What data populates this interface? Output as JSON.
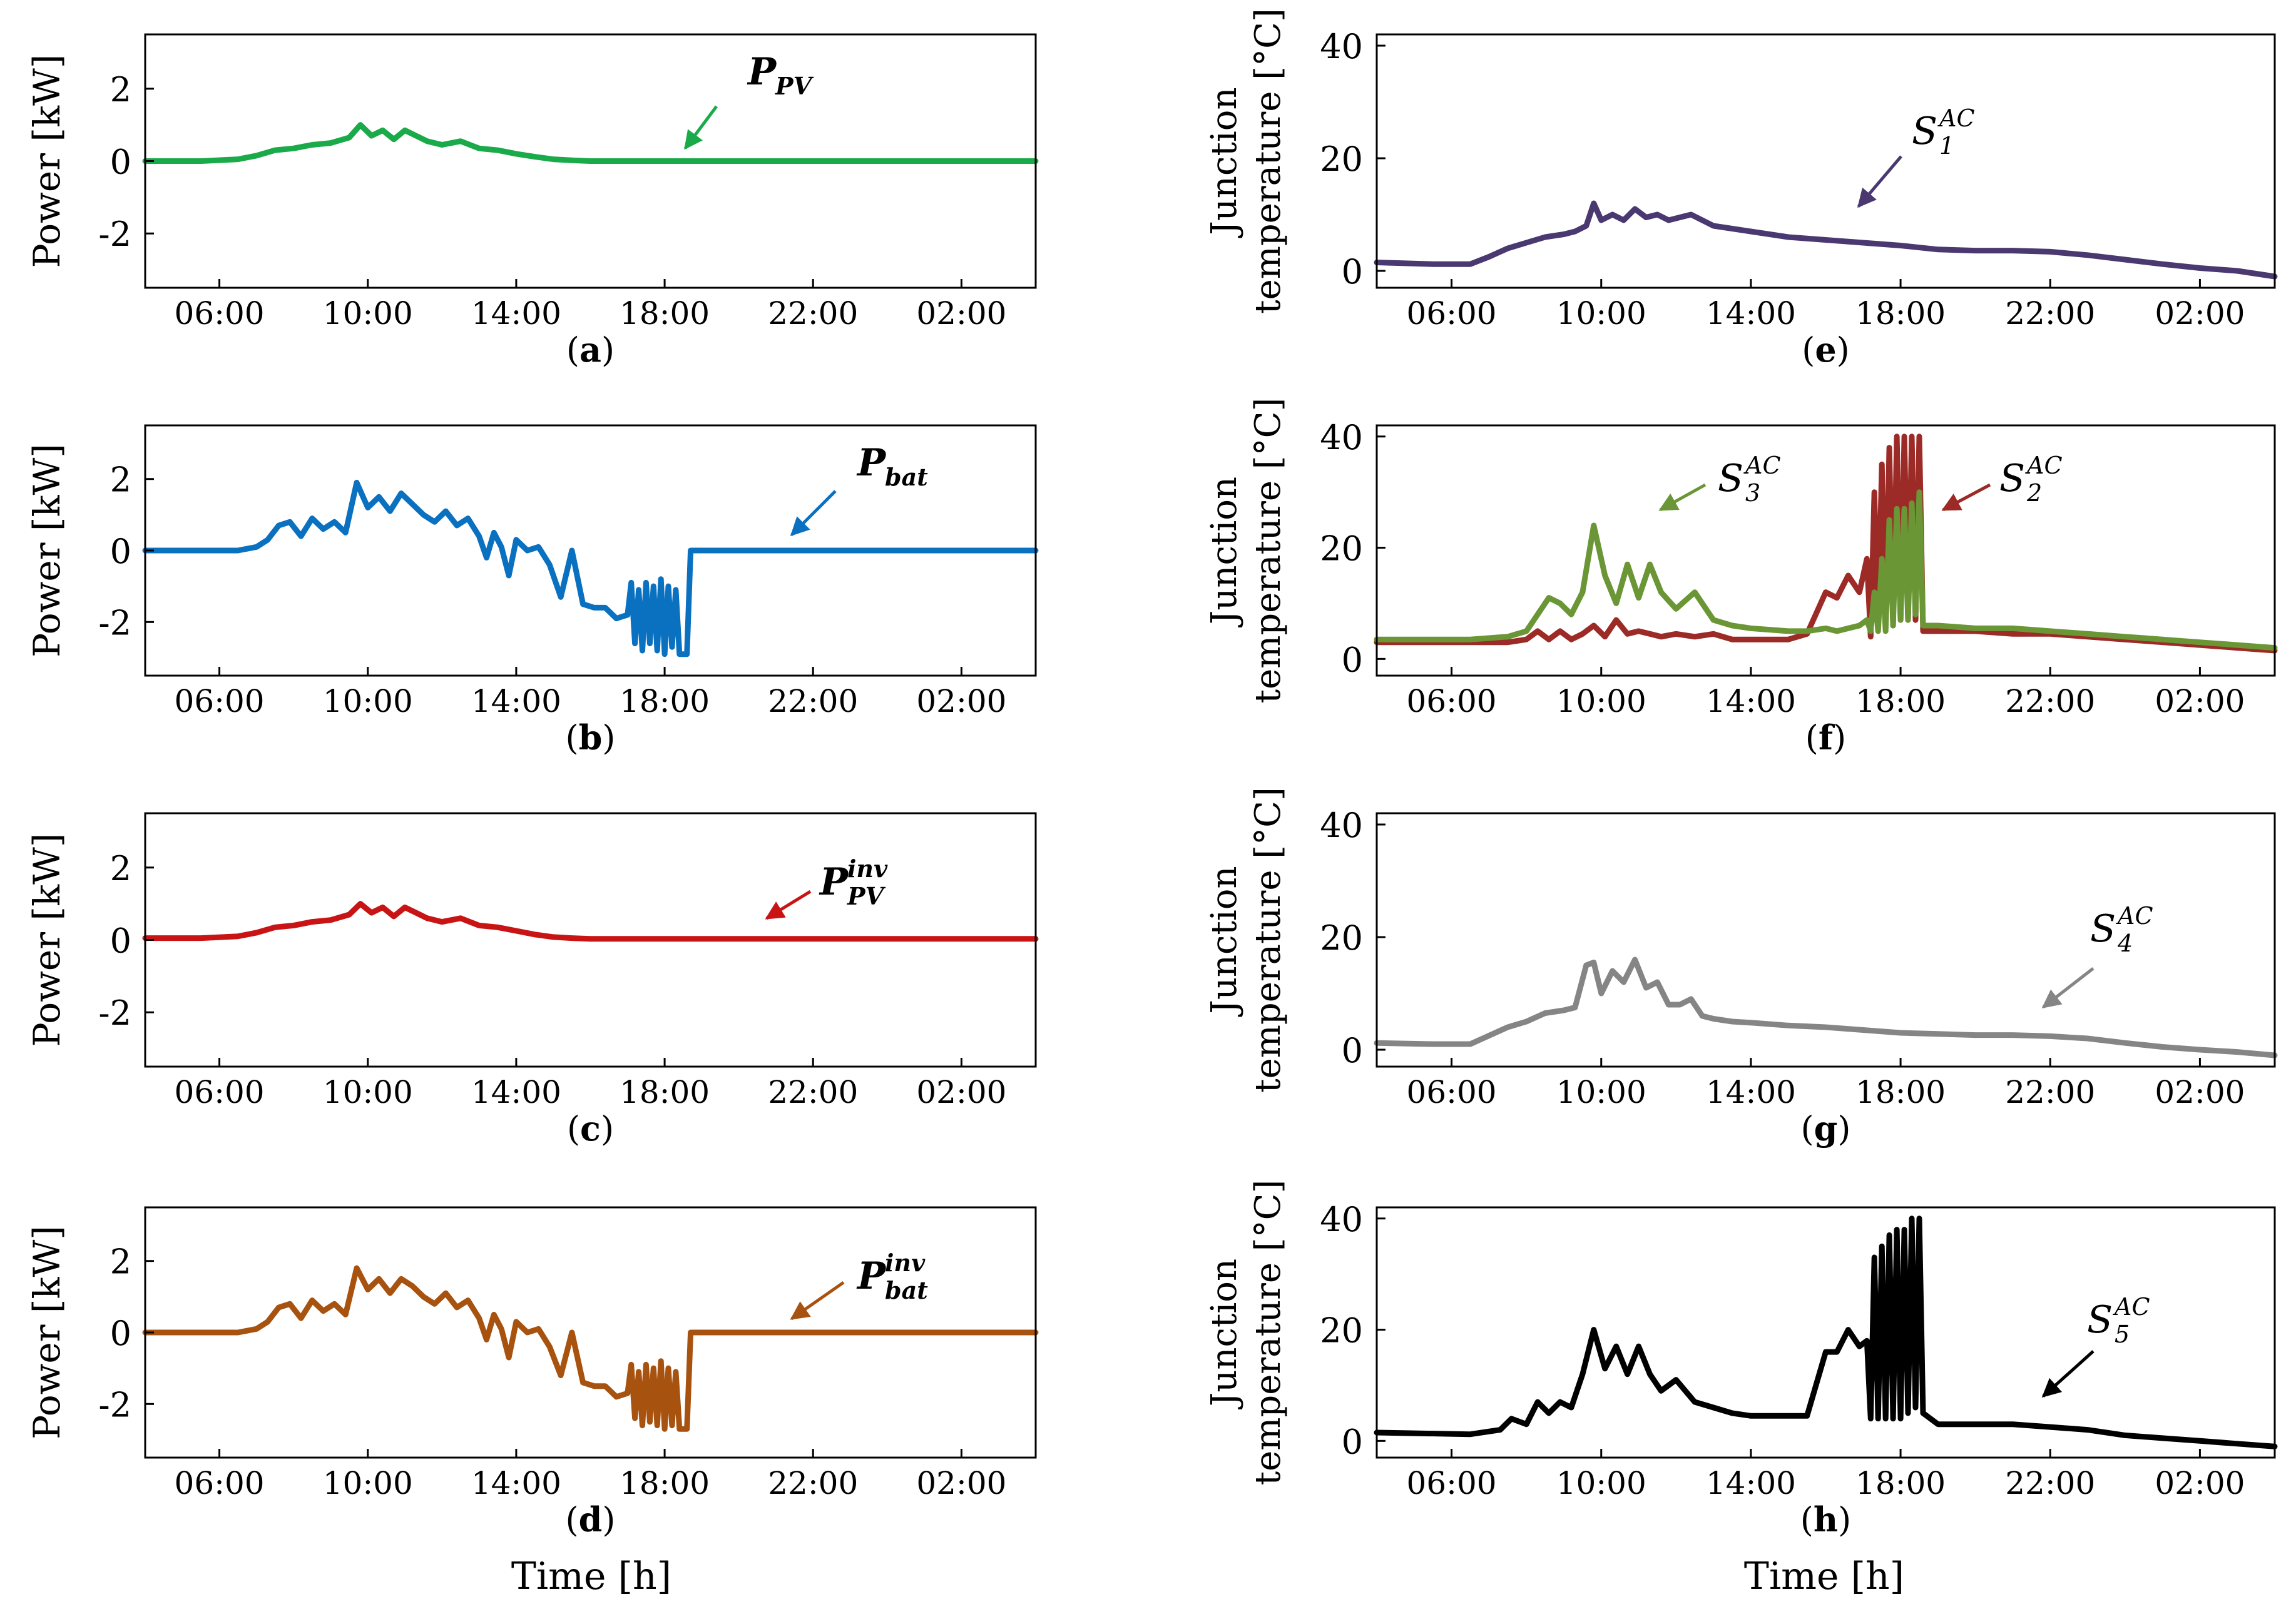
{
  "x_axis": {
    "ticks": [
      "06:00",
      "10:00",
      "14:00",
      "18:00",
      "22:00",
      "02:00"
    ],
    "tick_hours": [
      6,
      10,
      14,
      18,
      22,
      26
    ],
    "range_hours": [
      4,
      28
    ],
    "label": "Time [h]"
  },
  "chart_data": [
    {
      "type": "line",
      "panel": "(a)",
      "ylabel": "Power [kW]",
      "ylim": [
        -3.5,
        3.5
      ],
      "yticks": [
        "2",
        "0",
        "-2"
      ],
      "ytick_values": [
        2,
        0,
        -2
      ],
      "series": [
        {
          "name": "P_PV",
          "label_main": "P",
          "label_sub": "PV",
          "label_sup": "",
          "color": "#1aaa4a",
          "x": [
            4,
            5.5,
            6.5,
            7,
            7.5,
            8,
            8.5,
            9,
            9.5,
            9.8,
            10.1,
            10.4,
            10.7,
            11,
            11.3,
            11.6,
            12,
            12.5,
            13,
            13.5,
            14,
            14.5,
            15,
            15.5,
            16,
            28
          ],
          "values": [
            0,
            0,
            0.05,
            0.15,
            0.3,
            0.35,
            0.45,
            0.5,
            0.65,
            1.0,
            0.7,
            0.85,
            0.6,
            0.85,
            0.7,
            0.55,
            0.45,
            0.55,
            0.35,
            0.3,
            0.2,
            0.12,
            0.05,
            0.02,
            0,
            0
          ]
        }
      ]
    },
    {
      "type": "line",
      "panel": "(b)",
      "ylabel": "Power [kW]",
      "ylim": [
        -3.5,
        3.5
      ],
      "yticks": [
        "2",
        "0",
        "-2"
      ],
      "ytick_values": [
        2,
        0,
        -2
      ],
      "series": [
        {
          "name": "P_bat",
          "label_main": "P",
          "label_sub": "bat",
          "label_sup": "",
          "color": "#0a70c0",
          "x": [
            4,
            6.5,
            7,
            7.3,
            7.6,
            7.9,
            8.2,
            8.5,
            8.8,
            9.1,
            9.4,
            9.7,
            10,
            10.3,
            10.6,
            10.9,
            11.2,
            11.5,
            11.8,
            12.1,
            12.4,
            12.7,
            13,
            13.2,
            13.4,
            13.6,
            13.8,
            14,
            14.3,
            14.6,
            14.9,
            15.2,
            15.5,
            15.8,
            16.1,
            16.4,
            16.7,
            17,
            17.1,
            17.2,
            17.3,
            17.4,
            17.5,
            17.6,
            17.7,
            17.8,
            17.9,
            18,
            18.1,
            18.2,
            18.3,
            18.4,
            18.5,
            18.6,
            18.7,
            19,
            28
          ],
          "values": [
            0,
            0,
            0.1,
            0.3,
            0.7,
            0.8,
            0.4,
            0.9,
            0.6,
            0.8,
            0.5,
            1.9,
            1.2,
            1.5,
            1.1,
            1.6,
            1.3,
            1.0,
            0.8,
            1.1,
            0.7,
            0.9,
            0.4,
            -0.2,
            0.5,
            0.1,
            -0.7,
            0.3,
            0.0,
            0.1,
            -0.4,
            -1.3,
            0.0,
            -1.5,
            -1.6,
            -1.6,
            -1.9,
            -1.8,
            -0.9,
            -2.6,
            -1.1,
            -2.8,
            -0.9,
            -2.6,
            -1.0,
            -2.8,
            -0.8,
            -2.9,
            -1.0,
            -2.7,
            -1.1,
            -2.9,
            -2.9,
            -2.9,
            0,
            0,
            0
          ]
        }
      ]
    },
    {
      "type": "line",
      "panel": "(c)",
      "ylabel": "Power [kW]",
      "ylim": [
        -3.5,
        3.5
      ],
      "yticks": [
        "2",
        "0",
        "-2"
      ],
      "ytick_values": [
        2,
        0,
        -2
      ],
      "series": [
        {
          "name": "P_PV^inv",
          "label_main": "P",
          "label_sub": "PV",
          "label_sup": "inv",
          "color": "#c81414",
          "x": [
            4,
            5.5,
            6.5,
            7,
            7.5,
            8,
            8.5,
            9,
            9.5,
            9.8,
            10.1,
            10.4,
            10.7,
            11,
            11.3,
            11.6,
            12,
            12.5,
            13,
            13.5,
            14,
            14.5,
            15,
            15.5,
            16,
            28
          ],
          "values": [
            0.05,
            0.05,
            0.1,
            0.2,
            0.35,
            0.4,
            0.5,
            0.55,
            0.7,
            1.0,
            0.75,
            0.9,
            0.65,
            0.9,
            0.75,
            0.6,
            0.5,
            0.6,
            0.4,
            0.35,
            0.25,
            0.15,
            0.08,
            0.05,
            0.03,
            0.03
          ]
        }
      ]
    },
    {
      "type": "line",
      "panel": "(d)",
      "ylabel": "Power [kW]",
      "ylim": [
        -3.5,
        3.5
      ],
      "yticks": [
        "2",
        "0",
        "-2"
      ],
      "ytick_values": [
        2,
        0,
        -2
      ],
      "series": [
        {
          "name": "P_bat^inv",
          "label_main": "P",
          "label_sub": "bat",
          "label_sup": "inv",
          "color": "#a8520f",
          "x": [
            4,
            6.5,
            7,
            7.3,
            7.6,
            7.9,
            8.2,
            8.5,
            8.8,
            9.1,
            9.4,
            9.7,
            10,
            10.3,
            10.6,
            10.9,
            11.2,
            11.5,
            11.8,
            12.1,
            12.4,
            12.7,
            13,
            13.2,
            13.4,
            13.6,
            13.8,
            14,
            14.3,
            14.6,
            14.9,
            15.2,
            15.5,
            15.8,
            16.1,
            16.4,
            16.7,
            17,
            17.1,
            17.2,
            17.3,
            17.4,
            17.5,
            17.6,
            17.7,
            17.8,
            17.9,
            18,
            18.1,
            18.2,
            18.3,
            18.4,
            18.5,
            18.6,
            18.7,
            19,
            28
          ],
          "values": [
            0,
            0,
            0.1,
            0.3,
            0.7,
            0.8,
            0.4,
            0.9,
            0.6,
            0.8,
            0.5,
            1.8,
            1.2,
            1.5,
            1.1,
            1.5,
            1.3,
            1.0,
            0.8,
            1.1,
            0.7,
            0.9,
            0.4,
            -0.2,
            0.5,
            0.1,
            -0.7,
            0.3,
            0.0,
            0.1,
            -0.4,
            -1.2,
            0.0,
            -1.4,
            -1.5,
            -1.5,
            -1.8,
            -1.7,
            -0.9,
            -2.4,
            -1.1,
            -2.6,
            -0.9,
            -2.5,
            -1.0,
            -2.6,
            -0.8,
            -2.7,
            -1.0,
            -2.6,
            -1.1,
            -2.7,
            -2.7,
            -2.7,
            0,
            0,
            0
          ]
        }
      ]
    },
    {
      "type": "line",
      "panel": "(e)",
      "ylabel_lines": [
        "Junction",
        "temperature [°C]"
      ],
      "ylim": [
        -3,
        42
      ],
      "yticks": [
        "40",
        "20",
        "0"
      ],
      "ytick_values": [
        40,
        20,
        0
      ],
      "series": [
        {
          "name": "S_1^AC",
          "label_main": "S",
          "label_sub": "1",
          "label_sup": "AC",
          "color": "#4a3870",
          "x": [
            4,
            5.5,
            6.5,
            7,
            7.5,
            8,
            8.5,
            9,
            9.3,
            9.6,
            9.8,
            10,
            10.3,
            10.6,
            10.9,
            11.2,
            11.5,
            11.8,
            12.1,
            12.4,
            12.7,
            13,
            13.5,
            14,
            15,
            16,
            17,
            18,
            19,
            20,
            21,
            22,
            23,
            24,
            25,
            26,
            27,
            28
          ],
          "values": [
            1.5,
            1.2,
            1.2,
            2.5,
            4,
            5,
            6,
            6.5,
            7,
            8,
            12,
            9,
            10,
            9,
            11,
            9.5,
            10,
            9,
            9.5,
            10,
            9,
            8,
            7.5,
            7,
            6,
            5.5,
            5,
            4.5,
            3.8,
            3.6,
            3.6,
            3.4,
            2.8,
            2,
            1.2,
            0.5,
            0,
            -1
          ]
        }
      ]
    },
    {
      "type": "line",
      "panel": "(f)",
      "ylabel_lines": [
        "Junction",
        "temperature [°C]"
      ],
      "ylim": [
        -3,
        42
      ],
      "yticks": [
        "40",
        "20",
        "0"
      ],
      "ytick_values": [
        40,
        20,
        0
      ],
      "series": [
        {
          "name": "S_2^AC",
          "label_main": "S",
          "label_sub": "2",
          "label_sup": "AC",
          "color": "#9c2a26",
          "x": [
            4,
            6.5,
            7.5,
            8,
            8.3,
            8.6,
            8.9,
            9.2,
            9.5,
            9.8,
            10.1,
            10.4,
            10.7,
            11,
            11.3,
            11.6,
            12,
            12.5,
            13,
            13.5,
            14,
            15,
            15.5,
            16,
            16.3,
            16.6,
            16.9,
            17.1,
            17.2,
            17.3,
            17.4,
            17.5,
            17.6,
            17.7,
            17.8,
            17.9,
            18,
            18.1,
            18.2,
            18.3,
            18.4,
            18.5,
            18.6,
            19,
            20,
            21,
            22,
            23,
            24,
            25,
            26,
            27,
            28
          ],
          "values": [
            3,
            3,
            3,
            3.5,
            5,
            3.5,
            5,
            3.5,
            4.5,
            6,
            4,
            7,
            4.5,
            5,
            4.5,
            4,
            4.5,
            4,
            4.5,
            3.5,
            3.5,
            3.5,
            4.5,
            12,
            11,
            15,
            12,
            18,
            4,
            30,
            6,
            35,
            6,
            38,
            6,
            40,
            7,
            40,
            7,
            40,
            7,
            40,
            5,
            5,
            5,
            4.5,
            4.5,
            4,
            3.5,
            3,
            2.5,
            2,
            1.5
          ]
        },
        {
          "name": "S_3^AC",
          "label_main": "S",
          "label_sub": "3",
          "label_sup": "AC",
          "color": "#6b9636",
          "x": [
            4,
            6.5,
            7.5,
            8,
            8.3,
            8.6,
            8.9,
            9.2,
            9.5,
            9.8,
            10.1,
            10.4,
            10.7,
            11,
            11.3,
            11.6,
            12,
            12.5,
            13,
            13.5,
            14,
            15,
            15.5,
            16,
            16.3,
            16.6,
            16.9,
            17.1,
            17.2,
            17.3,
            17.4,
            17.5,
            17.6,
            17.7,
            17.8,
            17.9,
            18,
            18.1,
            18.2,
            18.3,
            18.4,
            18.5,
            18.6,
            19,
            20,
            21,
            22,
            23,
            24,
            25,
            26,
            27,
            28
          ],
          "values": [
            3.5,
            3.5,
            4,
            5,
            8,
            11,
            10,
            8,
            12,
            24,
            15,
            10,
            17,
            11,
            17,
            12,
            9,
            12,
            7,
            6,
            5.5,
            5,
            5,
            5.5,
            5,
            5.5,
            6,
            7,
            5,
            12,
            5,
            18,
            5,
            25,
            6,
            27,
            7,
            27,
            7,
            28,
            8,
            30,
            6,
            6,
            5.5,
            5.5,
            5,
            4.5,
            4,
            3.5,
            3,
            2.5,
            2
          ]
        }
      ]
    },
    {
      "type": "line",
      "panel": "(g)",
      "ylabel_lines": [
        "Junction",
        "temperature [°C]"
      ],
      "ylim": [
        -3,
        42
      ],
      "yticks": [
        "40",
        "20",
        "0"
      ],
      "ytick_values": [
        40,
        20,
        0
      ],
      "series": [
        {
          "name": "S_4^AC",
          "label_main": "S",
          "label_sub": "4",
          "label_sup": "AC",
          "color": "#858585",
          "x": [
            4,
            5.5,
            6.5,
            7,
            7.5,
            8,
            8.5,
            9,
            9.3,
            9.6,
            9.8,
            10,
            10.3,
            10.6,
            10.9,
            11.2,
            11.5,
            11.8,
            12.1,
            12.4,
            12.7,
            13,
            13.5,
            14,
            15,
            16,
            17,
            18,
            19,
            20,
            21,
            22,
            23,
            24,
            25,
            26,
            27,
            28
          ],
          "values": [
            1.2,
            1,
            1,
            2.5,
            4,
            5,
            6.5,
            7,
            7.5,
            15,
            15.5,
            10,
            14,
            12,
            16,
            11,
            12,
            8,
            8,
            9,
            6,
            5.5,
            5,
            4.8,
            4.3,
            4,
            3.5,
            3,
            2.8,
            2.6,
            2.6,
            2.4,
            2,
            1.2,
            0.5,
            0,
            -0.4,
            -1
          ]
        }
      ]
    },
    {
      "type": "line",
      "panel": "(h)",
      "ylabel_lines": [
        "Junction",
        "temperature [°C]"
      ],
      "ylim": [
        -3,
        42
      ],
      "yticks": [
        "40",
        "20",
        "0"
      ],
      "ytick_values": [
        40,
        20,
        0
      ],
      "series": [
        {
          "name": "S_5^AC",
          "label_main": "S",
          "label_sub": "5",
          "label_sup": "AC",
          "color": "#000000",
          "x": [
            4,
            6.5,
            7.3,
            7.6,
            8,
            8.3,
            8.6,
            8.9,
            9.2,
            9.5,
            9.8,
            10.1,
            10.4,
            10.7,
            11,
            11.3,
            11.6,
            12,
            12.5,
            13,
            13.5,
            14,
            15,
            15.5,
            16,
            16.3,
            16.6,
            16.9,
            17.1,
            17.2,
            17.3,
            17.4,
            17.5,
            17.6,
            17.7,
            17.8,
            17.9,
            18,
            18.1,
            18.2,
            18.3,
            18.4,
            18.5,
            18.6,
            19,
            20,
            21,
            22,
            23,
            24,
            25,
            26,
            27,
            28
          ],
          "values": [
            1.5,
            1.2,
            2,
            4,
            3,
            7,
            5,
            7,
            6,
            12,
            20,
            13,
            17,
            12,
            17,
            12,
            9,
            11,
            7,
            6,
            5,
            4.5,
            4.5,
            4.5,
            16,
            16,
            20,
            17,
            18,
            4,
            33,
            4,
            35,
            4,
            37,
            4,
            38,
            4,
            38,
            5,
            40,
            6,
            40,
            5,
            3,
            3,
            3,
            2.5,
            2,
            1,
            0.5,
            0,
            -0.5,
            -1
          ]
        }
      ]
    }
  ]
}
